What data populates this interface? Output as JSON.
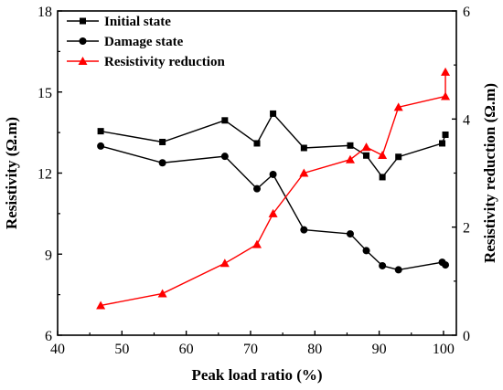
{
  "chart_data": {
    "type": "line",
    "x_axis": {
      "label": "Peak load ratio (%)",
      "range": [
        40,
        102
      ],
      "ticks": [
        40,
        50,
        60,
        70,
        80,
        90,
        100
      ]
    },
    "y_axis_left": {
      "label": "Resistivity (Ω.m)",
      "range": [
        6,
        18
      ],
      "ticks": [
        6,
        9,
        12,
        15,
        18
      ]
    },
    "y_axis_right": {
      "label": "Resistivity reduction (Ω.m)",
      "range": [
        0,
        6
      ],
      "ticks": [
        0,
        2,
        4,
        6
      ]
    },
    "legend_position": "top-left",
    "series": [
      {
        "name": "Initial state",
        "axis": "left",
        "color": "#000000",
        "marker": "square",
        "x": [
          46.7,
          56.3,
          66.0,
          71.0,
          73.5,
          78.3,
          85.5,
          88.0,
          90.5,
          93.0,
          99.8,
          100.3
        ],
        "y": [
          13.55,
          13.15,
          13.95,
          13.1,
          14.2,
          12.93,
          13.02,
          12.65,
          11.85,
          12.6,
          13.1,
          13.42
        ]
      },
      {
        "name": "Damage state",
        "axis": "left",
        "color": "#000000",
        "marker": "circle",
        "x": [
          46.7,
          56.3,
          66.0,
          71.0,
          73.5,
          78.3,
          85.5,
          88.0,
          90.5,
          93.0,
          99.8,
          100.3
        ],
        "y": [
          13.0,
          12.38,
          12.62,
          11.42,
          11.95,
          9.9,
          9.75,
          9.13,
          8.57,
          8.42,
          8.7,
          8.6
        ]
      },
      {
        "name": "Resistivity reduction",
        "axis": "right",
        "color": "#ff0000",
        "marker": "triangle",
        "x": [
          46.7,
          56.3,
          66.0,
          71.0,
          73.5,
          78.3,
          85.5,
          88.0,
          90.5,
          93.0,
          100.3,
          100.3
        ],
        "y": [
          0.55,
          0.77,
          1.33,
          1.68,
          2.25,
          3.0,
          3.25,
          3.48,
          3.33,
          4.22,
          4.42,
          4.87
        ]
      }
    ]
  }
}
